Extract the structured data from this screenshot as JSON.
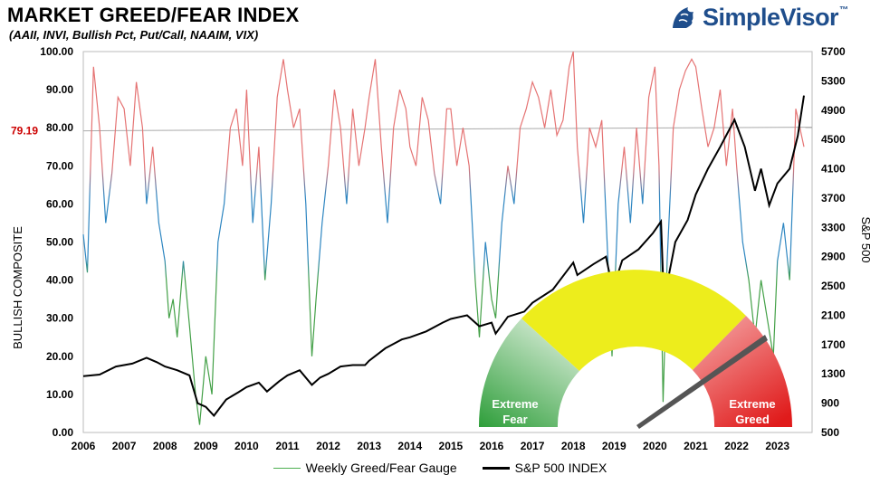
{
  "header": {
    "title": "MARKET GREED/FEAR INDEX",
    "subtitle": "(AAII, INVI, Bullish Pct, Put/Call, NAAIM, VIX)"
  },
  "brand": {
    "name": "SimpleVisor",
    "tm": "™"
  },
  "legend": {
    "items": [
      {
        "label": "Weekly Greed/Fear Gauge",
        "color": "#4caf50"
      },
      {
        "label": "S&P 500 INDEX",
        "color": "#000000"
      }
    ]
  },
  "gauge": {
    "fear_label_line1": "Extreme",
    "fear_label_line2": "Fear",
    "greed_label_line1": "Extreme",
    "greed_label_line2": "Greed",
    "current_value": 79.19
  },
  "chart_data": {
    "type": "line",
    "xlabel": "",
    "ylabel_left": "BULLISH COMPOSITE",
    "ylabel_right": "S&P 500",
    "ylim_left": [
      0,
      100
    ],
    "ylim_right": [
      500,
      5700
    ],
    "y_ticks_left": [
      "0.00",
      "10.00",
      "20.00",
      "30.00",
      "40.00",
      "50.00",
      "60.00",
      "70.00",
      "80.00",
      "90.00",
      "100.00"
    ],
    "y_ticks_right": [
      "500",
      "900",
      "1300",
      "1700",
      "2100",
      "2500",
      "2900",
      "3300",
      "3700",
      "4100",
      "4500",
      "4900",
      "5300",
      "5700"
    ],
    "x_ticks": [
      "2006",
      "2007",
      "2008",
      "2009",
      "2010",
      "2011",
      "2012",
      "2013",
      "2014",
      "2015",
      "2016",
      "2017",
      "2018",
      "2019",
      "2020",
      "2021",
      "2022",
      "2023"
    ],
    "reference_line": {
      "value": 79.19,
      "label": "79.19",
      "color": "#cc0000"
    },
    "colors": {
      "greed": "#e57373",
      "neutral": "#2e86c1",
      "fear": "#43a047",
      "spx": "#000000"
    },
    "series": [
      {
        "name": "Weekly Greed/Fear Gauge",
        "axis": "left",
        "x": [
          2006.0,
          2006.1,
          2006.25,
          2006.4,
          2006.55,
          2006.7,
          2006.85,
          2007.0,
          2007.15,
          2007.3,
          2007.45,
          2007.55,
          2007.7,
          2007.85,
          2008.0,
          2008.1,
          2008.2,
          2008.3,
          2008.45,
          2008.6,
          2008.75,
          2008.85,
          2009.0,
          2009.15,
          2009.3,
          2009.45,
          2009.6,
          2009.75,
          2009.9,
          2010.0,
          2010.15,
          2010.3,
          2010.45,
          2010.6,
          2010.75,
          2010.9,
          2011.0,
          2011.15,
          2011.3,
          2011.45,
          2011.6,
          2011.7,
          2011.85,
          2012.0,
          2012.15,
          2012.3,
          2012.45,
          2012.6,
          2012.75,
          2012.9,
          2013.0,
          2013.15,
          2013.3,
          2013.45,
          2013.6,
          2013.75,
          2013.9,
          2014.0,
          2014.15,
          2014.3,
          2014.45,
          2014.6,
          2014.75,
          2014.9,
          2015.0,
          2015.15,
          2015.3,
          2015.45,
          2015.6,
          2015.7,
          2015.85,
          2016.0,
          2016.1,
          2016.25,
          2016.4,
          2016.55,
          2016.7,
          2016.85,
          2017.0,
          2017.15,
          2017.3,
          2017.45,
          2017.6,
          2017.75,
          2017.9,
          2018.0,
          2018.1,
          2018.25,
          2018.4,
          2018.55,
          2018.7,
          2018.85,
          2018.95,
          2019.1,
          2019.25,
          2019.4,
          2019.55,
          2019.7,
          2019.85,
          2020.0,
          2020.1,
          2020.2,
          2020.3,
          2020.45,
          2020.6,
          2020.75,
          2020.9,
          2021.0,
          2021.15,
          2021.3,
          2021.45,
          2021.6,
          2021.75,
          2021.9,
          2022.0,
          2022.15,
          2022.3,
          2022.45,
          2022.6,
          2022.75,
          2022.9,
          2023.0,
          2023.15,
          2023.3,
          2023.45,
          2023.55,
          2023.65
        ],
        "values": [
          52,
          42,
          96,
          80,
          55,
          68,
          88,
          85,
          70,
          92,
          80,
          60,
          75,
          55,
          45,
          30,
          35,
          25,
          45,
          28,
          10,
          2,
          20,
          10,
          50,
          60,
          80,
          85,
          70,
          90,
          55,
          75,
          40,
          60,
          88,
          98,
          90,
          80,
          85,
          60,
          20,
          35,
          55,
          70,
          90,
          80,
          60,
          85,
          70,
          80,
          88,
          98,
          75,
          55,
          80,
          90,
          85,
          75,
          70,
          88,
          82,
          68,
          60,
          85,
          85,
          70,
          80,
          70,
          40,
          25,
          50,
          35,
          30,
          55,
          70,
          60,
          80,
          85,
          92,
          88,
          80,
          90,
          78,
          82,
          96,
          100,
          75,
          55,
          80,
          75,
          82,
          45,
          20,
          60,
          75,
          55,
          80,
          60,
          88,
          96,
          70,
          8,
          45,
          80,
          90,
          95,
          98,
          96,
          85,
          75,
          80,
          90,
          70,
          85,
          70,
          50,
          40,
          25,
          40,
          30,
          20,
          45,
          55,
          40,
          85,
          80,
          75
        ]
      },
      {
        "name": "S&P 500 INDEX",
        "axis": "right",
        "x": [
          2006.0,
          2006.4,
          2006.8,
          2007.2,
          2007.55,
          2007.8,
          2008.0,
          2008.3,
          2008.6,
          2008.8,
          2009.0,
          2009.2,
          2009.5,
          2009.8,
          2010.0,
          2010.3,
          2010.5,
          2010.8,
          2011.0,
          2011.3,
          2011.6,
          2011.8,
          2012.0,
          2012.3,
          2012.6,
          2012.9,
          2013.0,
          2013.4,
          2013.8,
          2014.0,
          2014.4,
          2014.8,
          2015.0,
          2015.4,
          2015.7,
          2016.0,
          2016.1,
          2016.4,
          2016.8,
          2017.0,
          2017.5,
          2018.0,
          2018.1,
          2018.5,
          2018.8,
          2018.97,
          2019.2,
          2019.6,
          2019.95,
          2020.15,
          2020.22,
          2020.5,
          2020.8,
          2021.0,
          2021.3,
          2021.6,
          2021.95,
          2022.2,
          2022.45,
          2022.6,
          2022.8,
          2023.0,
          2023.3,
          2023.5,
          2023.65
        ],
        "values": [
          1270,
          1290,
          1400,
          1440,
          1520,
          1460,
          1400,
          1350,
          1280,
          900,
          850,
          730,
          950,
          1050,
          1120,
          1180,
          1060,
          1200,
          1280,
          1350,
          1150,
          1250,
          1300,
          1400,
          1420,
          1420,
          1480,
          1650,
          1770,
          1800,
          1880,
          2000,
          2050,
          2100,
          1950,
          2000,
          1850,
          2080,
          2150,
          2270,
          2450,
          2820,
          2650,
          2800,
          2900,
          2450,
          2850,
          3000,
          3220,
          3380,
          2300,
          3100,
          3400,
          3750,
          4100,
          4400,
          4770,
          4400,
          3800,
          4100,
          3600,
          3900,
          4100,
          4550,
          5100
        ]
      }
    ]
  }
}
